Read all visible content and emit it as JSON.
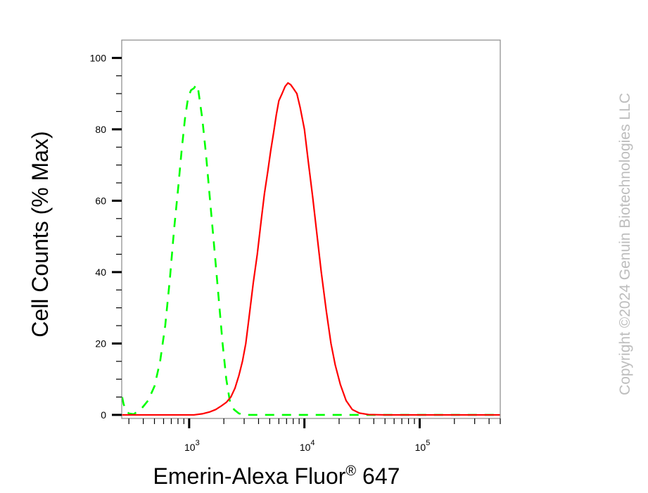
{
  "chart_data": {
    "type": "area",
    "xlabel": "Emerin-Alexa Fluor",
    "xlabel_superscript": "®",
    "xlabel_suffix": " 647",
    "ylabel": "Cell Counts (% Max)",
    "x_scale": "log",
    "xlim": [
      260,
      500000
    ],
    "ylim": [
      -1,
      105
    ],
    "x_tick_labels": [
      {
        "value": 1000,
        "base": "10",
        "exp": "3"
      },
      {
        "value": 10000,
        "base": "10",
        "exp": "4"
      },
      {
        "value": 100000,
        "base": "10",
        "exp": "5"
      }
    ],
    "y_ticks": [
      0,
      20,
      40,
      60,
      80,
      100
    ],
    "y_tick_labels": [
      "0",
      "20",
      "40",
      "60",
      "80",
      "100"
    ],
    "grid": false,
    "legend": null,
    "series": [
      {
        "color": "#00ff00",
        "style": "dashed",
        "points": [
          [
            262,
            5
          ],
          [
            270,
            3
          ],
          [
            285,
            1
          ],
          [
            300,
            0.4
          ],
          [
            330,
            0.2
          ],
          [
            380,
            1.5
          ],
          [
            440,
            4
          ],
          [
            500,
            8
          ],
          [
            560,
            15
          ],
          [
            620,
            25
          ],
          [
            680,
            38
          ],
          [
            740,
            52
          ],
          [
            800,
            63
          ],
          [
            860,
            74
          ],
          [
            920,
            83
          ],
          [
            980,
            89
          ],
          [
            1040,
            91
          ],
          [
            1100,
            91.5
          ],
          [
            1150,
            92.5
          ],
          [
            1200,
            91
          ],
          [
            1300,
            83
          ],
          [
            1400,
            73
          ],
          [
            1500,
            62
          ],
          [
            1650,
            47
          ],
          [
            1800,
            33
          ],
          [
            1950,
            20
          ],
          [
            2100,
            10
          ],
          [
            2250,
            4
          ],
          [
            2450,
            1.5
          ],
          [
            2700,
            0.4
          ],
          [
            3000,
            0
          ],
          [
            5000,
            0
          ],
          [
            8000,
            0
          ],
          [
            15000,
            0
          ],
          [
            30000,
            0
          ],
          [
            60000,
            0
          ],
          [
            150000,
            0
          ],
          [
            500000,
            0
          ]
        ]
      },
      {
        "color": "#ff0000",
        "style": "solid",
        "points": [
          [
            262,
            0
          ],
          [
            600,
            0
          ],
          [
            1100,
            0
          ],
          [
            1300,
            0.3
          ],
          [
            1500,
            0.8
          ],
          [
            1700,
            1.5
          ],
          [
            1900,
            2.5
          ],
          [
            2100,
            3.5
          ],
          [
            2300,
            5
          ],
          [
            2500,
            7.5
          ],
          [
            2700,
            11
          ],
          [
            2900,
            15
          ],
          [
            3100,
            20
          ],
          [
            3300,
            27
          ],
          [
            3600,
            37
          ],
          [
            3900,
            45
          ],
          [
            4200,
            54
          ],
          [
            4500,
            62
          ],
          [
            4800,
            68
          ],
          [
            5100,
            74
          ],
          [
            5400,
            79
          ],
          [
            5700,
            84
          ],
          [
            6000,
            88
          ],
          [
            6400,
            90
          ],
          [
            6800,
            92
          ],
          [
            7200,
            93
          ],
          [
            7600,
            92.5
          ],
          [
            8000,
            91.5
          ],
          [
            8600,
            90
          ],
          [
            9200,
            86
          ],
          [
            10000,
            80
          ],
          [
            10800,
            71
          ],
          [
            11800,
            61
          ],
          [
            12800,
            51
          ],
          [
            14000,
            40
          ],
          [
            15500,
            29
          ],
          [
            17000,
            20
          ],
          [
            18500,
            14
          ],
          [
            20500,
            8.5
          ],
          [
            23000,
            4
          ],
          [
            26000,
            1.5
          ],
          [
            30000,
            0.5
          ],
          [
            36000,
            0.1
          ],
          [
            50000,
            0
          ],
          [
            100000,
            0
          ],
          [
            200000,
            0
          ],
          [
            500000,
            0
          ]
        ]
      }
    ]
  },
  "copyright": "Copyright ©2024 Genuin Biotechnologies LLC"
}
